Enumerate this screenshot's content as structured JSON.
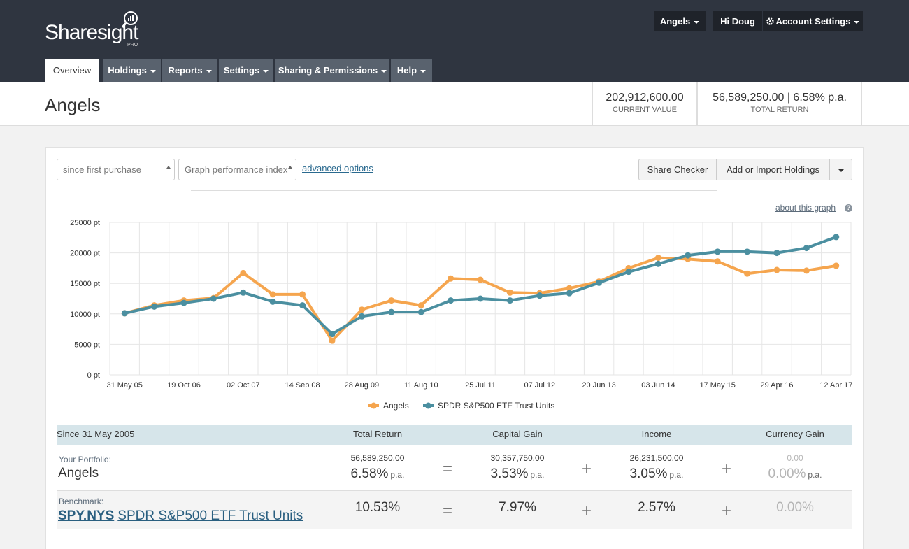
{
  "header": {
    "logo": "Sharesight",
    "logo_badge": "PRO",
    "portfolio_menu": "Angels",
    "greeting": "Hi Doug",
    "account_menu": "Account Settings"
  },
  "nav": [
    "Overview",
    "Holdings",
    "Reports",
    "Settings",
    "Sharing & Permissions",
    "Help"
  ],
  "portfolio": {
    "title": "Angels",
    "stats": [
      {
        "value": "202,912,600.00",
        "label": "CURRENT VALUE"
      },
      {
        "value": "56,589,250.00 | 6.58% p.a.",
        "label": "TOTAL RETURN"
      }
    ]
  },
  "controls": {
    "period": "since first purchase",
    "graph_type": "Graph performance index",
    "advanced": "advanced options",
    "buttons": [
      "Share Checker",
      "Add or Import Holdings"
    ],
    "about": "about this graph",
    "about_icon": "?"
  },
  "chart_data": {
    "type": "line",
    "categories": [
      "31 May 05",
      null,
      "19 Oct 06",
      null,
      "02 Oct 07",
      null,
      "14 Sep 08",
      null,
      "28 Aug 09",
      null,
      "11 Aug 10",
      null,
      "25 Jul 11",
      null,
      "07 Jul 12",
      null,
      "20 Jun 13",
      null,
      "03 Jun 14",
      null,
      "17 May 15",
      null,
      "29 Apr 16",
      null,
      "12 Apr 17"
    ],
    "series": [
      {
        "name": "Angels",
        "color": "#f5a54e",
        "values": [
          10100,
          11400,
          12200,
          12600,
          16700,
          13200,
          13200,
          5600,
          10700,
          12200,
          11400,
          15800,
          15600,
          13500,
          13400,
          14200,
          15300,
          17500,
          19200,
          19000,
          18600,
          16600,
          17200,
          17100,
          17900
        ]
      },
      {
        "name": "SPDR S&P500 ETF Trust Units",
        "color": "#4b8fa0",
        "values": [
          10100,
          11200,
          11800,
          12500,
          13500,
          12000,
          11400,
          6700,
          9600,
          10300,
          10300,
          12200,
          12500,
          12200,
          13000,
          13400,
          15100,
          16900,
          18200,
          19600,
          20200,
          20200,
          20000,
          20800,
          22600
        ]
      }
    ],
    "ylim": [
      0,
      25000
    ],
    "yticks": [
      {
        "value": 0,
        "label": "0 pt"
      },
      {
        "value": 5000,
        "label": "5000 pt"
      },
      {
        "value": 10000,
        "label": "10000 pt"
      },
      {
        "value": 15000,
        "label": "15000 pt"
      },
      {
        "value": 20000,
        "label": "20000 pt"
      },
      {
        "value": 25000,
        "label": "25000 pt"
      }
    ],
    "grid": true,
    "legend": "bottom"
  },
  "table": {
    "columns": [
      "Since 31 May 2005",
      "Total Return",
      "Capital Gain",
      "Income",
      "Currency Gain"
    ],
    "operators": [
      "=",
      "+",
      "+"
    ],
    "portfolio": {
      "label": "Your Portfolio:",
      "name": "Angels",
      "cells": [
        {
          "amount": "56,589,250.00",
          "percent": "6.58%",
          "unit": "p.a."
        },
        {
          "amount": "30,357,750.00",
          "percent": "3.53%",
          "unit": "p.a."
        },
        {
          "amount": "26,231,500.00",
          "percent": "3.05%",
          "unit": "p.a."
        },
        {
          "amount": "0.00",
          "percent": "0.00%",
          "unit": "p.a."
        }
      ]
    },
    "benchmark": {
      "label": "Benchmark:",
      "code": "SPY.NYS",
      "name": "SPDR S&P500 ETF Trust Units",
      "cells": [
        "10.53%",
        "7.97%",
        "2.57%",
        "0.00%"
      ]
    }
  }
}
